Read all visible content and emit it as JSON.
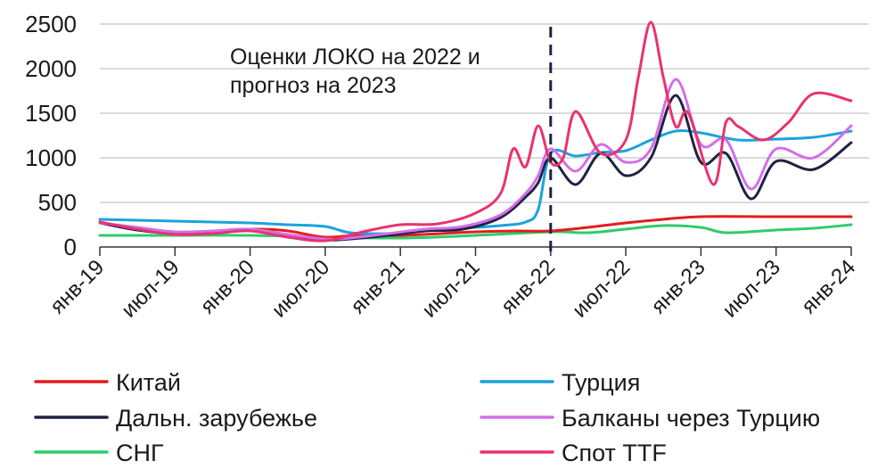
{
  "chart_data": {
    "type": "line",
    "ylim": [
      0,
      2500
    ],
    "yticks": [
      "0",
      "500",
      "1000",
      "1500",
      "2000",
      "2500"
    ],
    "grid": true,
    "x_tick_labels": [
      "янв-19",
      "июл-19",
      "янв-20",
      "июл-20",
      "янв-21",
      "июл-21",
      "янв-22",
      "июл-22",
      "янв-23",
      "июл-23",
      "янв-24"
    ],
    "x_months_range": [
      "2019-01",
      "2024-01"
    ],
    "divider_month": "2022-01",
    "annotation": [
      "Оценки  ЛОКО  на 2022 и",
      "прогноз  на 2023"
    ],
    "legend_placement": "bottom, two columns",
    "series": [
      {
        "name": "Китай",
        "color": "#e31d1d",
        "points": [
          [
            "2019-01",
            270
          ],
          [
            "2019-07",
            160
          ],
          [
            "2020-01",
            200
          ],
          [
            "2020-04",
            180
          ],
          [
            "2020-07",
            110
          ],
          [
            "2020-10",
            140
          ],
          [
            "2021-01",
            130
          ],
          [
            "2021-07",
            170
          ],
          [
            "2021-10",
            180
          ],
          [
            "2022-01",
            180
          ],
          [
            "2022-04",
            220
          ],
          [
            "2022-07",
            270
          ],
          [
            "2022-10",
            310
          ],
          [
            "2023-01",
            340
          ],
          [
            "2023-07",
            340
          ],
          [
            "2024-01",
            340
          ]
        ]
      },
      {
        "name": "Турция",
        "color": "#1aa3dd",
        "points": [
          [
            "2019-01",
            310
          ],
          [
            "2019-04",
            300
          ],
          [
            "2019-07",
            290
          ],
          [
            "2019-10",
            280
          ],
          [
            "2020-01",
            270
          ],
          [
            "2020-04",
            250
          ],
          [
            "2020-07",
            230
          ],
          [
            "2020-09",
            160
          ],
          [
            "2020-12",
            150
          ],
          [
            "2021-03",
            180
          ],
          [
            "2021-06",
            210
          ],
          [
            "2021-09",
            240
          ],
          [
            "2021-11",
            280
          ],
          [
            "2021-12",
            420
          ],
          [
            "2022-01",
            1050
          ],
          [
            "2022-03",
            1020
          ],
          [
            "2022-05",
            1060
          ],
          [
            "2022-07",
            1080
          ],
          [
            "2022-09",
            1200
          ],
          [
            "2022-11",
            1300
          ],
          [
            "2023-01",
            1280
          ],
          [
            "2023-04",
            1200
          ],
          [
            "2023-07",
            1210
          ],
          [
            "2023-10",
            1230
          ],
          [
            "2024-01",
            1300
          ]
        ]
      },
      {
        "name": "Дальн. зарубежье",
        "color": "#1f2244",
        "points": [
          [
            "2019-01",
            270
          ],
          [
            "2019-04",
            190
          ],
          [
            "2019-07",
            150
          ],
          [
            "2019-10",
            160
          ],
          [
            "2020-01",
            190
          ],
          [
            "2020-04",
            130
          ],
          [
            "2020-07",
            80
          ],
          [
            "2020-09",
            90
          ],
          [
            "2020-12",
            130
          ],
          [
            "2021-03",
            180
          ],
          [
            "2021-06",
            200
          ],
          [
            "2021-09",
            330
          ],
          [
            "2021-11",
            560
          ],
          [
            "2021-12",
            720
          ],
          [
            "2022-01",
            1000
          ],
          [
            "2022-03",
            700
          ],
          [
            "2022-05",
            1050
          ],
          [
            "2022-07",
            800
          ],
          [
            "2022-09",
            1000
          ],
          [
            "2022-11",
            1700
          ],
          [
            "2023-01",
            950
          ],
          [
            "2023-03",
            1050
          ],
          [
            "2023-05",
            540
          ],
          [
            "2023-07",
            960
          ],
          [
            "2023-10",
            870
          ],
          [
            "2024-01",
            1170
          ]
        ]
      },
      {
        "name": "Балканы через Турцию",
        "color": "#d46ee8",
        "points": [
          [
            "2019-01",
            270
          ],
          [
            "2019-04",
            220
          ],
          [
            "2019-07",
            170
          ],
          [
            "2019-10",
            180
          ],
          [
            "2020-01",
            200
          ],
          [
            "2020-04",
            140
          ],
          [
            "2020-07",
            90
          ],
          [
            "2020-09",
            100
          ],
          [
            "2020-12",
            150
          ],
          [
            "2021-03",
            200
          ],
          [
            "2021-06",
            230
          ],
          [
            "2021-09",
            360
          ],
          [
            "2021-11",
            600
          ],
          [
            "2021-12",
            800
          ],
          [
            "2022-01",
            1100
          ],
          [
            "2022-03",
            850
          ],
          [
            "2022-05",
            1150
          ],
          [
            "2022-07",
            950
          ],
          [
            "2022-09",
            1100
          ],
          [
            "2022-11",
            1880
          ],
          [
            "2023-01",
            1150
          ],
          [
            "2023-03",
            1200
          ],
          [
            "2023-05",
            650
          ],
          [
            "2023-07",
            1100
          ],
          [
            "2023-10",
            1000
          ],
          [
            "2024-01",
            1360
          ]
        ]
      },
      {
        "name": "СНГ",
        "color": "#2ecc6e",
        "points": [
          [
            "2019-01",
            130
          ],
          [
            "2019-07",
            130
          ],
          [
            "2020-01",
            130
          ],
          [
            "2020-07",
            110
          ],
          [
            "2021-01",
            100
          ],
          [
            "2021-07",
            130
          ],
          [
            "2022-01",
            170
          ],
          [
            "2022-04",
            160
          ],
          [
            "2022-07",
            200
          ],
          [
            "2022-10",
            240
          ],
          [
            "2023-01",
            220
          ],
          [
            "2023-03",
            160
          ],
          [
            "2023-07",
            190
          ],
          [
            "2023-10",
            210
          ],
          [
            "2024-01",
            250
          ]
        ]
      },
      {
        "name": "Спот TTF",
        "color": "#e8336f",
        "points": [
          [
            "2019-01",
            280
          ],
          [
            "2019-04",
            200
          ],
          [
            "2019-07",
            140
          ],
          [
            "2019-10",
            150
          ],
          [
            "2020-01",
            180
          ],
          [
            "2020-04",
            110
          ],
          [
            "2020-07",
            70
          ],
          [
            "2020-10",
            170
          ],
          [
            "2021-01",
            250
          ],
          [
            "2021-04",
            260
          ],
          [
            "2021-07",
            380
          ],
          [
            "2021-09",
            600
          ],
          [
            "2021-10",
            1100
          ],
          [
            "2021-11",
            900
          ],
          [
            "2021-12",
            1360
          ],
          [
            "2022-01",
            950
          ],
          [
            "2022-02",
            1000
          ],
          [
            "2022-03",
            1520
          ],
          [
            "2022-05",
            1050
          ],
          [
            "2022-07",
            1200
          ],
          [
            "2022-08",
            1900
          ],
          [
            "2022-09",
            2520
          ],
          [
            "2022-10",
            1900
          ],
          [
            "2022-11",
            1350
          ],
          [
            "2022-12",
            1500
          ],
          [
            "2023-02",
            700
          ],
          [
            "2023-03",
            1400
          ],
          [
            "2023-04",
            1350
          ],
          [
            "2023-06",
            1200
          ],
          [
            "2023-08",
            1400
          ],
          [
            "2023-10",
            1720
          ],
          [
            "2024-01",
            1640
          ]
        ]
      }
    ]
  }
}
